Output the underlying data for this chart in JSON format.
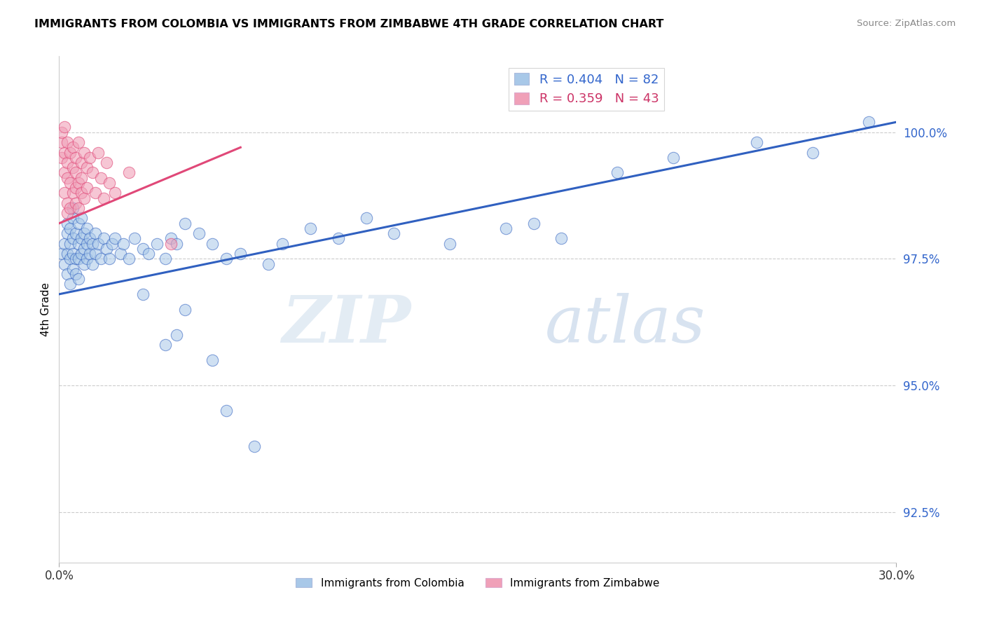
{
  "title": "IMMIGRANTS FROM COLOMBIA VS IMMIGRANTS FROM ZIMBABWE 4TH GRADE CORRELATION CHART",
  "source": "Source: ZipAtlas.com",
  "ylabel": "4th Grade",
  "xlim": [
    0.0,
    0.3
  ],
  "ylim": [
    91.5,
    101.5
  ],
  "yticks": [
    92.5,
    95.0,
    97.5,
    100.0
  ],
  "ytick_labels": [
    "92.5%",
    "95.0%",
    "97.5%",
    "100.0%"
  ],
  "xticks": [
    0.0,
    0.3
  ],
  "xtick_labels": [
    "0.0%",
    "30.0%"
  ],
  "legend1_label": "R = 0.404   N = 82",
  "legend2_label": "R = 0.359   N = 43",
  "blue_color": "#a8c8e8",
  "pink_color": "#f0a0b8",
  "blue_line_color": "#3060c0",
  "pink_line_color": "#e04878",
  "blue_line_x0": 0.0,
  "blue_line_x1": 0.3,
  "blue_line_y0": 96.8,
  "blue_line_y1": 100.2,
  "pink_line_x0": 0.0,
  "pink_line_x1": 0.065,
  "pink_line_y0": 98.2,
  "pink_line_y1": 99.7,
  "colombia_x": [
    0.001,
    0.002,
    0.002,
    0.003,
    0.003,
    0.003,
    0.003,
    0.004,
    0.004,
    0.004,
    0.004,
    0.005,
    0.005,
    0.005,
    0.005,
    0.005,
    0.006,
    0.006,
    0.006,
    0.007,
    0.007,
    0.007,
    0.007,
    0.008,
    0.008,
    0.008,
    0.009,
    0.009,
    0.009,
    0.01,
    0.01,
    0.01,
    0.011,
    0.011,
    0.012,
    0.012,
    0.013,
    0.013,
    0.014,
    0.015,
    0.016,
    0.017,
    0.018,
    0.019,
    0.02,
    0.022,
    0.023,
    0.025,
    0.027,
    0.03,
    0.032,
    0.035,
    0.038,
    0.04,
    0.042,
    0.045,
    0.05,
    0.055,
    0.06,
    0.065,
    0.08,
    0.09,
    0.1,
    0.11,
    0.12,
    0.14,
    0.17,
    0.2,
    0.22,
    0.25,
    0.27,
    0.29,
    0.16,
    0.075,
    0.18,
    0.045,
    0.03,
    0.038,
    0.042,
    0.055,
    0.06,
    0.07
  ],
  "colombia_y": [
    97.6,
    97.8,
    97.4,
    98.0,
    97.6,
    98.2,
    97.2,
    97.8,
    98.1,
    97.5,
    97.0,
    98.3,
    97.9,
    97.6,
    98.5,
    97.3,
    98.0,
    97.5,
    97.2,
    97.8,
    98.2,
    97.5,
    97.1,
    97.9,
    97.6,
    98.3,
    97.7,
    98.0,
    97.4,
    97.8,
    97.5,
    98.1,
    97.6,
    97.9,
    97.4,
    97.8,
    97.6,
    98.0,
    97.8,
    97.5,
    97.9,
    97.7,
    97.5,
    97.8,
    97.9,
    97.6,
    97.8,
    97.5,
    97.9,
    97.7,
    97.6,
    97.8,
    97.5,
    97.9,
    97.8,
    98.2,
    98.0,
    97.8,
    97.5,
    97.6,
    97.8,
    98.1,
    97.9,
    98.3,
    98.0,
    97.8,
    98.2,
    99.2,
    99.5,
    99.8,
    99.6,
    100.2,
    98.1,
    97.4,
    97.9,
    96.5,
    96.8,
    95.8,
    96.0,
    95.5,
    94.5,
    93.8
  ],
  "zimbabwe_x": [
    0.001,
    0.001,
    0.001,
    0.002,
    0.002,
    0.002,
    0.002,
    0.003,
    0.003,
    0.003,
    0.003,
    0.003,
    0.004,
    0.004,
    0.004,
    0.005,
    0.005,
    0.005,
    0.006,
    0.006,
    0.006,
    0.006,
    0.007,
    0.007,
    0.007,
    0.008,
    0.008,
    0.008,
    0.009,
    0.009,
    0.01,
    0.01,
    0.011,
    0.012,
    0.013,
    0.014,
    0.015,
    0.016,
    0.017,
    0.018,
    0.02,
    0.025,
    0.04
  ],
  "zimbabwe_y": [
    99.8,
    99.5,
    100.0,
    99.2,
    99.6,
    98.8,
    100.1,
    99.4,
    98.6,
    99.8,
    99.1,
    98.4,
    99.6,
    99.0,
    98.5,
    99.3,
    98.8,
    99.7,
    99.5,
    98.9,
    99.2,
    98.6,
    99.8,
    99.0,
    98.5,
    99.4,
    98.8,
    99.1,
    99.6,
    98.7,
    99.3,
    98.9,
    99.5,
    99.2,
    98.8,
    99.6,
    99.1,
    98.7,
    99.4,
    99.0,
    98.8,
    99.2,
    97.8
  ]
}
